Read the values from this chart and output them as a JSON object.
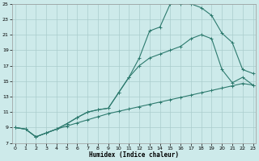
{
  "xlabel": "Humidex (Indice chaleur)",
  "bg_color": "#cdeaea",
  "grid_color": "#aacccc",
  "line_color": "#2d7a6e",
  "xlim": [
    0,
    23
  ],
  "ylim": [
    7,
    25
  ],
  "xticks": [
    0,
    1,
    2,
    3,
    4,
    5,
    6,
    7,
    8,
    9,
    10,
    11,
    12,
    13,
    14,
    15,
    16,
    17,
    18,
    19,
    20,
    21,
    22,
    23
  ],
  "yticks": [
    7,
    9,
    11,
    13,
    15,
    17,
    19,
    21,
    23,
    25
  ],
  "line1_x": [
    0,
    1,
    2,
    3,
    4,
    5,
    6,
    7,
    8,
    9,
    10,
    11,
    12,
    13,
    14,
    15,
    16,
    17,
    18,
    19,
    20,
    21,
    22,
    23
  ],
  "line1_y": [
    9.0,
    8.8,
    7.8,
    8.3,
    8.8,
    9.2,
    9.6,
    10.0,
    10.4,
    10.8,
    11.1,
    11.4,
    11.7,
    12.0,
    12.3,
    12.6,
    12.9,
    13.2,
    13.5,
    13.8,
    14.1,
    14.4,
    14.7,
    14.5
  ],
  "line2_x": [
    0,
    1,
    2,
    3,
    4,
    5,
    6,
    7,
    8,
    9,
    10,
    11,
    12,
    13,
    14,
    15,
    16,
    17,
    18,
    19,
    20,
    21,
    22,
    23
  ],
  "line2_y": [
    9.0,
    8.8,
    7.8,
    8.3,
    8.8,
    9.5,
    10.3,
    11.0,
    11.3,
    11.5,
    13.5,
    15.5,
    17.0,
    18.0,
    18.5,
    19.0,
    19.5,
    20.5,
    21.0,
    20.5,
    16.5,
    14.8,
    15.5,
    14.5
  ],
  "line3_x": [
    0,
    1,
    2,
    3,
    4,
    5,
    6,
    7,
    8,
    9,
    10,
    11,
    12,
    13,
    14,
    15,
    16,
    17,
    18,
    19,
    20,
    21,
    22,
    23
  ],
  "line3_y": [
    9.0,
    8.8,
    7.8,
    8.3,
    8.8,
    9.5,
    10.3,
    11.0,
    11.3,
    11.5,
    13.5,
    15.5,
    18.0,
    21.5,
    22.0,
    25.0,
    25.0,
    25.0,
    24.5,
    23.5,
    21.2,
    20.0,
    16.5,
    16.0
  ]
}
